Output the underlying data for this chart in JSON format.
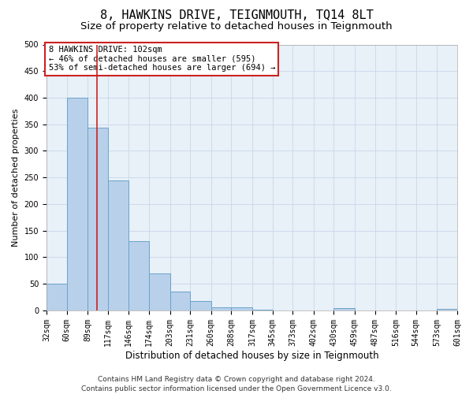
{
  "title": "8, HAWKINS DRIVE, TEIGNMOUTH, TQ14 8LT",
  "subtitle": "Size of property relative to detached houses in Teignmouth",
  "xlabel": "Distribution of detached houses by size in Teignmouth",
  "ylabel": "Number of detached properties",
  "bin_edges": [
    32,
    60,
    89,
    117,
    146,
    174,
    203,
    231,
    260,
    288,
    317,
    345,
    373,
    402,
    430,
    459,
    487,
    516,
    544,
    573,
    601
  ],
  "bar_heights": [
    50,
    400,
    343,
    245,
    130,
    70,
    35,
    17,
    6,
    6,
    1,
    0,
    0,
    0,
    5,
    0,
    0,
    0,
    0,
    3
  ],
  "bar_color": "#b8d0ea",
  "bar_edge_color": "#6ba3c8",
  "grid_color": "#c8d8e8",
  "bg_color": "#e8f0f8",
  "red_line_x": 102,
  "annotation_text": "8 HAWKINS DRIVE: 102sqm\n← 46% of detached houses are smaller (595)\n53% of semi-detached houses are larger (694) →",
  "annotation_box_color": "#ffffff",
  "annotation_box_edge_color": "#cc2222",
  "footnote": "Contains HM Land Registry data © Crown copyright and database right 2024.\nContains public sector information licensed under the Open Government Licence v3.0.",
  "ylim": [
    0,
    500
  ],
  "yticks": [
    0,
    50,
    100,
    150,
    200,
    250,
    300,
    350,
    400,
    450,
    500
  ],
  "title_fontsize": 11,
  "subtitle_fontsize": 9.5,
  "xlabel_fontsize": 8.5,
  "ylabel_fontsize": 8,
  "tick_fontsize": 7,
  "annotation_fontsize": 7.5,
  "footnote_fontsize": 6.5
}
